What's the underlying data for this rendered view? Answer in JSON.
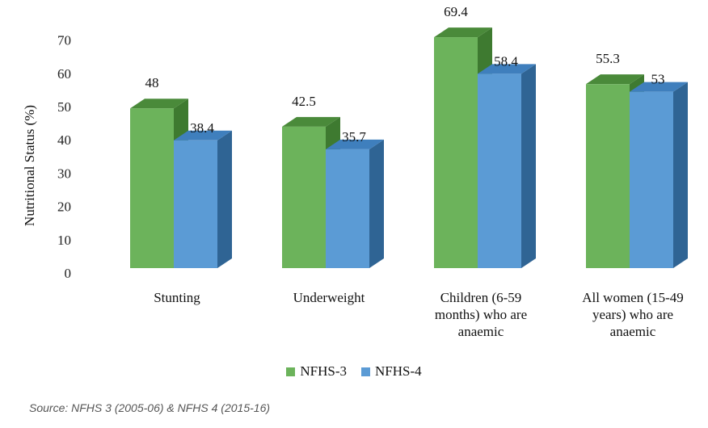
{
  "chart_data": {
    "type": "bar",
    "style": "3d-clustered-column",
    "ylabel": "Nutritional Status  (%)",
    "ylim": [
      0,
      70
    ],
    "yticks": [
      0,
      10,
      20,
      30,
      40,
      50,
      60,
      70
    ],
    "grid": false,
    "legend_position": "bottom",
    "categories": [
      [
        "Stunting"
      ],
      [
        "Underweight"
      ],
      [
        "Children (6-59",
        "months) who are",
        "anaemic"
      ],
      [
        "All women (15-49",
        "years) who are",
        "anaemic"
      ]
    ],
    "series": [
      {
        "name": "NFHS-3",
        "color": "#6cb35b",
        "values": [
          48,
          42.5,
          69.4,
          55.3
        ],
        "labels": [
          "48",
          "42.5",
          "69.4",
          "55.3"
        ]
      },
      {
        "name": "NFHS-4",
        "color": "#5b9bd5",
        "values": [
          38.4,
          35.7,
          58.4,
          53
        ],
        "labels": [
          "38.4",
          "35.7",
          "58.4",
          "53"
        ]
      }
    ]
  },
  "source_text": "Source: NFHS 3 (2005-06) & NFHS 4 (2015-16)",
  "colors": {
    "nfhs3_front": "#6cb35b",
    "nfhs3_top": "#4a8a3a",
    "nfhs3_side": "#3e7a30",
    "nfhs4_front": "#5b9bd5",
    "nfhs4_top": "#3f7fbd",
    "nfhs4_side": "#2f6494"
  }
}
